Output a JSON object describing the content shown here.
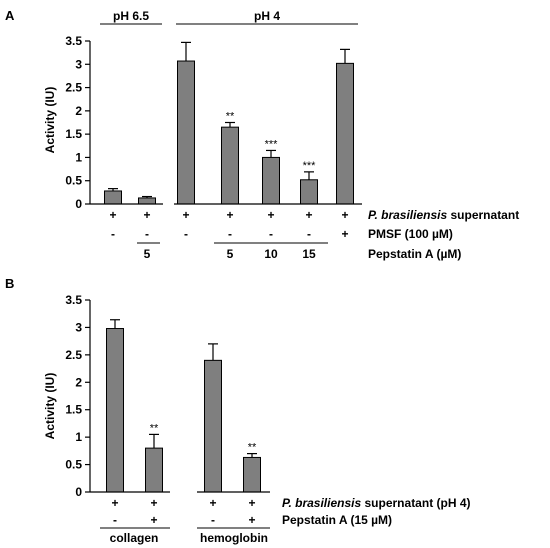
{
  "chart_data": [
    {
      "panel_label": "A",
      "type": "bar",
      "ylabel": "Activity (IU)",
      "ylim": [
        0,
        3.5
      ],
      "yticks": [
        "0",
        "0.5",
        "1",
        "1.5",
        "2",
        "2.5",
        "3",
        "3.5"
      ],
      "bar_color": "#7f7f7f",
      "values": [
        0.28,
        0.13,
        3.07,
        1.65,
        1.0,
        0.52,
        3.02
      ],
      "errors": [
        0.05,
        0.03,
        0.4,
        0.1,
        0.15,
        0.17,
        0.3
      ],
      "significance": [
        "",
        "",
        "",
        "**",
        "***",
        "***",
        ""
      ],
      "groups": [
        {
          "label": "pH 6.5"
        },
        {
          "label": "pH 4"
        }
      ],
      "row_labels": [
        "P. brasiliensis supernatant",
        "PMSF (100 µM)",
        "Pepstatin A (µM)"
      ],
      "row_label_italic_prefix": "P. brasiliensis",
      "row_label_rest": " supernatant",
      "rows": [
        [
          "+",
          "+",
          "+",
          "+",
          "+",
          "+",
          "+"
        ],
        [
          "-",
          "-",
          "-",
          "-",
          "-",
          "-",
          "+"
        ],
        [
          "",
          "5",
          "",
          "5",
          "10",
          "15",
          ""
        ]
      ]
    },
    {
      "panel_label": "B",
      "type": "bar",
      "ylabel": "Activity (IU)",
      "ylim": [
        0,
        3.5
      ],
      "yticks": [
        "0",
        "0.5",
        "1",
        "1.5",
        "2",
        "2.5",
        "3",
        "3.5"
      ],
      "bar_color": "#7f7f7f",
      "values": [
        2.98,
        0.8,
        2.4,
        0.63
      ],
      "errors": [
        0.16,
        0.25,
        0.3,
        0.07
      ],
      "significance": [
        "",
        "**",
        "",
        "**"
      ],
      "groups": [
        {
          "label": "collagen"
        },
        {
          "label": "hemoglobin"
        }
      ],
      "row_label_italic_prefix": "P. brasiliensis",
      "row_label_rest": " supernatant (pH 4)",
      "row2_label": "Pepstatin A (15 µM)",
      "rows": [
        [
          "+",
          "+",
          "+",
          "+"
        ],
        [
          "-",
          "+",
          "-",
          "+"
        ]
      ]
    }
  ]
}
